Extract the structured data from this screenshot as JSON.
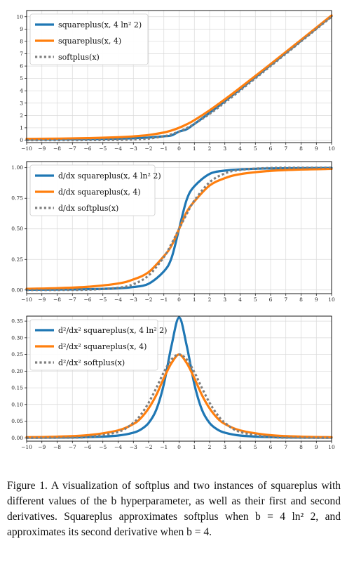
{
  "chart_data": [
    {
      "type": "line",
      "xlim": [
        -10,
        10
      ],
      "ylim": [
        -0.2,
        10.5
      ],
      "x_ticks": [
        "−10",
        "−9",
        "−8",
        "−7",
        "−6",
        "−5",
        "−4",
        "−3",
        "−2",
        "−1",
        "0",
        "1",
        "2",
        "3",
        "4",
        "5",
        "6",
        "7",
        "8",
        "9",
        "10"
      ],
      "y_ticks": [
        "0",
        "1",
        "2",
        "3",
        "4",
        "5",
        "6",
        "7",
        "8",
        "9",
        "10"
      ],
      "grid": true,
      "legend_position": "top-left",
      "series": [
        {
          "name": "squareplus(x, 4 ln² 2)",
          "color": "#1f77b4",
          "style": "solid",
          "x": [
            -10,
            -8,
            -6,
            -4,
            -3,
            -2,
            -1,
            -0.5,
            0,
            0.5,
            1,
            2,
            3,
            4,
            6,
            8,
            10
          ],
          "values": [
            0.048,
            0.06,
            0.079,
            0.116,
            0.151,
            0.21,
            0.311,
            0.385,
            0.693,
            0.885,
            1.311,
            2.21,
            3.151,
            4.116,
            6.079,
            8.06,
            10.048
          ]
        },
        {
          "name": "squareplus(x, 4)",
          "color": "#ff7f0e",
          "style": "solid",
          "x": [
            -10,
            -8,
            -6,
            -4,
            -3,
            -2,
            -1,
            -0.5,
            0,
            0.5,
            1,
            2,
            3,
            4,
            6,
            8,
            10
          ],
          "values": [
            0.099,
            0.123,
            0.162,
            0.236,
            0.303,
            0.414,
            0.618,
            0.781,
            1.0,
            1.281,
            1.618,
            2.414,
            3.303,
            4.236,
            6.162,
            8.123,
            10.099
          ]
        },
        {
          "name": "softplus(x)",
          "color": "#7f7f7f",
          "style": "dotted",
          "x": [
            -10,
            -8,
            -6,
            -4,
            -3,
            -2,
            -1,
            -0.5,
            0,
            0.5,
            1,
            2,
            3,
            4,
            6,
            8,
            10
          ],
          "values": [
            4.54e-05,
            0.000335,
            0.00248,
            0.0181,
            0.0486,
            0.127,
            0.313,
            0.474,
            0.693,
            0.974,
            1.313,
            2.127,
            3.049,
            4.018,
            6.002,
            8.0,
            10.0
          ]
        }
      ]
    },
    {
      "type": "line",
      "xlim": [
        -10,
        10
      ],
      "ylim": [
        -0.03,
        1.05
      ],
      "x_ticks": [
        "−10",
        "−9",
        "−8",
        "−7",
        "−6",
        "−5",
        "−4",
        "−3",
        "−2",
        "−1",
        "0",
        "1",
        "2",
        "3",
        "4",
        "5",
        "6",
        "7",
        "8",
        "9",
        "10"
      ],
      "y_ticks": [
        "0.00",
        "0.25",
        "0.50",
        "0.75",
        "1.00"
      ],
      "grid": true,
      "legend_position": "top-left",
      "series": [
        {
          "name": "d/dx squareplus(x, 4 ln² 2)",
          "color": "#1f77b4",
          "style": "solid",
          "x": [
            -10,
            -8,
            -6,
            -4,
            -3,
            -2,
            -1,
            -0.5,
            0,
            0.5,
            1,
            2,
            3,
            4,
            6,
            8,
            10
          ],
          "values": [
            0.0024,
            0.0037,
            0.0065,
            0.014,
            0.024,
            0.051,
            0.152,
            0.261,
            0.5,
            0.739,
            0.848,
            0.949,
            0.976,
            0.986,
            0.994,
            0.996,
            0.998
          ]
        },
        {
          "name": "d/dx squareplus(x, 4)",
          "color": "#ff7f0e",
          "style": "solid",
          "x": [
            -10,
            -8,
            -6,
            -4,
            -3,
            -2,
            -1,
            -0.5,
            0,
            0.5,
            1,
            2,
            3,
            4,
            6,
            8,
            10
          ],
          "values": [
            0.0098,
            0.015,
            0.026,
            0.053,
            0.086,
            0.146,
            0.276,
            0.362,
            0.5,
            0.638,
            0.724,
            0.854,
            0.914,
            0.947,
            0.974,
            0.985,
            0.99
          ]
        },
        {
          "name": "d/dx softplus(x)",
          "color": "#7f7f7f",
          "style": "dotted",
          "x": [
            -10,
            -8,
            -6,
            -4,
            -3,
            -2,
            -1,
            -0.5,
            0,
            0.5,
            1,
            2,
            3,
            4,
            6,
            8,
            10
          ],
          "values": [
            4.54e-05,
            0.000335,
            0.00247,
            0.018,
            0.047,
            0.119,
            0.269,
            0.378,
            0.5,
            0.622,
            0.731,
            0.881,
            0.953,
            0.982,
            0.998,
            1.0,
            1.0
          ]
        }
      ]
    },
    {
      "type": "line",
      "xlim": [
        -10,
        10
      ],
      "ylim": [
        -0.01,
        0.365
      ],
      "x_ticks": [
        "−10",
        "−9",
        "−8",
        "−7",
        "−6",
        "−5",
        "−4",
        "−3",
        "−2",
        "−1",
        "0",
        "1",
        "2",
        "3",
        "4",
        "5",
        "6",
        "7",
        "8",
        "9",
        "10"
      ],
      "y_ticks": [
        "0.00",
        "0.05",
        "0.10",
        "0.15",
        "0.20",
        "0.25",
        "0.30",
        "0.35"
      ],
      "grid": true,
      "legend_position": "top-left",
      "series": [
        {
          "name": "d²/dx² squareplus(x, 4 ln² 2)",
          "color": "#1f77b4",
          "style": "solid",
          "x": [
            -10,
            -8,
            -6,
            -4,
            -3,
            -2.5,
            -2,
            -1.5,
            -1,
            -0.5,
            0,
            0.5,
            1,
            1.5,
            2,
            2.5,
            3,
            4,
            6,
            8,
            10
          ],
          "values": [
            0.0005,
            0.0009,
            0.002,
            0.0069,
            0.0154,
            0.0253,
            0.0445,
            0.084,
            0.161,
            0.276,
            0.361,
            0.276,
            0.161,
            0.084,
            0.0445,
            0.0253,
            0.0154,
            0.0069,
            0.002,
            0.0009,
            0.0005
          ]
        },
        {
          "name": "d²/dx² squareplus(x, 4)",
          "color": "#ff7f0e",
          "style": "solid",
          "x": [
            -10,
            -8,
            -6,
            -4,
            -3,
            -2.5,
            -2,
            -1.5,
            -1,
            -0.5,
            0,
            0.5,
            1,
            1.5,
            2,
            2.5,
            3,
            4,
            6,
            8,
            10
          ],
          "values": [
            0.0019,
            0.0036,
            0.0079,
            0.0224,
            0.0416,
            0.0596,
            0.0884,
            0.128,
            0.179,
            0.224,
            0.25,
            0.224,
            0.179,
            0.128,
            0.0884,
            0.0596,
            0.0416,
            0.0224,
            0.0079,
            0.0036,
            0.0019
          ]
        },
        {
          "name": "d²/dx² softplus(x)",
          "color": "#7f7f7f",
          "style": "dotted",
          "x": [
            -10,
            -8,
            -6,
            -4,
            -3,
            -2.5,
            -2,
            -1.5,
            -1,
            -0.5,
            0,
            0.5,
            1,
            1.5,
            2,
            2.5,
            3,
            4,
            6,
            8,
            10
          ],
          "values": [
            4.54e-05,
            0.000335,
            0.00247,
            0.0177,
            0.0452,
            0.0701,
            0.105,
            0.149,
            0.197,
            0.235,
            0.25,
            0.235,
            0.197,
            0.149,
            0.105,
            0.0701,
            0.0452,
            0.0177,
            0.00247,
            0.000335,
            4.54e-05
          ]
        }
      ]
    }
  ],
  "caption": "Figure 1.  A visualization of softplus and two instances of squareplus with different values of the b hyperparameter, as well as their first and second derivatives.  Squareplus approximates softplus when b = 4 ln² 2, and approximates its second derivative when b = 4."
}
